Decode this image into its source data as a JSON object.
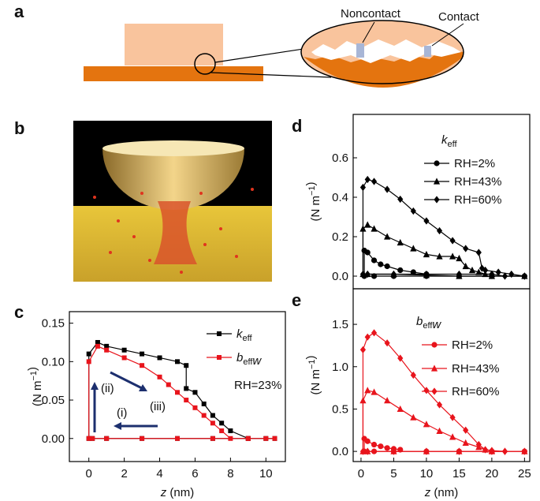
{
  "panels": {
    "a": {
      "label": "a",
      "annotations": [
        "Noncontact",
        "Contact"
      ]
    },
    "b": {
      "label": "b"
    }
  },
  "chart_data": [
    {
      "type": "line",
      "panel_label": "c",
      "xlabel": "z (nm)",
      "ylabel": "(N m−1)",
      "xlim": [
        -1.1,
        11.1
      ],
      "xticks": [
        0,
        2,
        4,
        6,
        8,
        10
      ],
      "ylim": [
        -0.03,
        0.165
      ],
      "yticks": [
        {
          "value": 0,
          "label": "0.00"
        },
        0.05,
        {
          "value": 0.1,
          "label": "0.10"
        },
        0.15
      ],
      "legend": "upper right",
      "annotations": [
        "(i)",
        "(ii)",
        "(iii)",
        "RH=23%"
      ],
      "series": [
        {
          "name": "keff",
          "color": "#000000",
          "marker": "square",
          "x": [
            10.5,
            9,
            7,
            5,
            3,
            1,
            0.2,
            0,
            0,
            0.5,
            1,
            2,
            3,
            4,
            5,
            5.5,
            5.5,
            6,
            6.5,
            7,
            7.5,
            8,
            9,
            10
          ],
          "values": [
            0,
            0,
            0,
            0,
            0,
            0,
            0,
            0,
            0.11,
            0.125,
            0.12,
            0.115,
            0.11,
            0.105,
            0.1,
            0.095,
            0.065,
            0.06,
            0.045,
            0.03,
            0.02,
            0.01,
            0,
            0
          ]
        },
        {
          "name": "beffw",
          "color": "#e8141c",
          "marker": "square",
          "x": [
            10.5,
            9,
            7,
            5,
            3,
            1,
            0.2,
            0,
            0,
            0.5,
            1,
            2,
            3,
            4,
            4.5,
            5,
            5.5,
            6,
            6.5,
            7,
            7.5,
            8,
            9,
            10
          ],
          "values": [
            0,
            0,
            0,
            0,
            0,
            0,
            0,
            0,
            0.1,
            0.12,
            0.115,
            0.105,
            0.095,
            0.08,
            0.07,
            0.06,
            0.05,
            0.04,
            0.03,
            0.02,
            0.01,
            0,
            0,
            0
          ]
        }
      ]
    },
    {
      "type": "line",
      "panel_label": "d",
      "ylabel": "(N m−1)",
      "legend_title": "keff",
      "xlim": [
        -1.2,
        25.8
      ],
      "ylim": [
        -0.064,
        0.82
      ],
      "yticks": [
        {
          "value": 0,
          "label": "0.0"
        },
        0.2,
        0.4,
        0.6
      ],
      "legend": "upper right",
      "series": [
        {
          "name": "RH=2%",
          "color": "#000000",
          "marker": "circle",
          "x": [
            25,
            20,
            15,
            10,
            5,
            2,
            0.5,
            0.5,
            1,
            2,
            3,
            4,
            6,
            8,
            10
          ],
          "values": [
            0,
            0,
            0,
            0,
            0,
            0,
            0,
            0.13,
            0.12,
            0.08,
            0.06,
            0.05,
            0.03,
            0.02,
            0.01
          ]
        },
        {
          "name": "RH=43%",
          "color": "#000000",
          "marker": "triangle",
          "x": [
            25,
            20,
            15,
            10,
            5,
            1,
            0.3,
            0.3,
            1,
            2,
            4,
            6,
            8,
            10,
            12,
            14,
            15,
            16,
            17,
            18,
            19,
            20
          ],
          "values": [
            0,
            0,
            0,
            0.005,
            0.01,
            0.01,
            0.01,
            0.24,
            0.26,
            0.24,
            0.2,
            0.17,
            0.14,
            0.11,
            0.1,
            0.1,
            0.09,
            0.05,
            0.03,
            0.02,
            0.01,
            0.01
          ]
        },
        {
          "name": "RH=60%",
          "color": "#000000",
          "marker": "diamond",
          "x": [
            25,
            22,
            20,
            15,
            10,
            5,
            1,
            0.3,
            0.3,
            1,
            2,
            4,
            6,
            8,
            10,
            12,
            14,
            16,
            18,
            18.5,
            19,
            21,
            23,
            25
          ],
          "values": [
            0,
            0,
            0.01,
            0.01,
            0.01,
            0.01,
            0.01,
            0.01,
            0.45,
            0.49,
            0.48,
            0.44,
            0.39,
            0.33,
            0.28,
            0.23,
            0.18,
            0.14,
            0.12,
            0.04,
            0.03,
            0.02,
            0.01,
            0
          ]
        }
      ]
    },
    {
      "type": "line",
      "panel_label": "e",
      "xlabel": "z (nm)",
      "ylabel": "(N m−1)",
      "legend_title": "beffw",
      "xlim": [
        -1.2,
        25.8
      ],
      "xticks": [
        0,
        5,
        10,
        15,
        20,
        25
      ],
      "ylim": [
        -0.12,
        1.92
      ],
      "yticks": [
        {
          "value": 0,
          "label": "0.0"
        },
        0.5,
        {
          "value": 1,
          "label": "1.0"
        },
        1.5
      ],
      "legend": "upper right",
      "series": [
        {
          "name": "RH=2%",
          "color": "#e8141c",
          "marker": "circle",
          "x": [
            25,
            20,
            15,
            10,
            5,
            2,
            0.5,
            0.5,
            1,
            2,
            3,
            4,
            5,
            6
          ],
          "values": [
            0,
            0,
            0,
            0,
            0,
            0,
            0,
            0.15,
            0.12,
            0.08,
            0.06,
            0.04,
            0.03,
            0.02
          ]
        },
        {
          "name": "RH=43%",
          "color": "#e8141c",
          "marker": "triangle",
          "x": [
            25,
            20,
            15,
            10,
            5,
            1,
            0.3,
            0.3,
            1,
            2,
            4,
            6,
            8,
            10,
            12,
            14,
            16,
            18,
            19,
            20
          ],
          "values": [
            0,
            0,
            0,
            0,
            0,
            0,
            0,
            0.6,
            0.72,
            0.7,
            0.6,
            0.5,
            0.4,
            0.32,
            0.24,
            0.17,
            0.1,
            0.05,
            0.02,
            0.01
          ]
        },
        {
          "name": "RH=60%",
          "color": "#e8141c",
          "marker": "diamond",
          "x": [
            25,
            22,
            20,
            15,
            10,
            5,
            1,
            0.3,
            0.3,
            1,
            2,
            4,
            6,
            8,
            10,
            12,
            14,
            16,
            18,
            19,
            20,
            22
          ],
          "values": [
            0,
            0,
            0,
            0,
            0,
            0,
            0,
            0,
            1.2,
            1.35,
            1.4,
            1.28,
            1.1,
            0.9,
            0.72,
            0.55,
            0.4,
            0.25,
            0.08,
            0.02,
            0.01,
            0
          ]
        }
      ]
    }
  ]
}
